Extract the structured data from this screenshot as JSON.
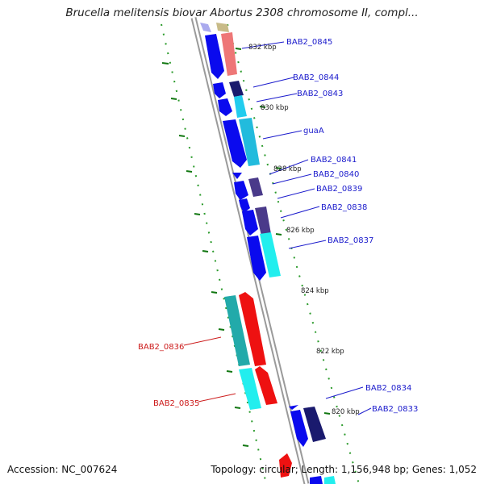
{
  "title": "Brucella melitensis biovar Abortus 2308 chromosome II, compl...",
  "accession": "Accession: NC_007624",
  "summary": "Topology: circular; Length: 1,156,948 bp; Genes: 1,052",
  "kbp_labels": [
    "832 kbp",
    "830 kbp",
    "828 kbp",
    "826 kbp",
    "824 kbp",
    "822 kbp",
    "820 kbp"
  ],
  "genes": [
    {
      "name": "BAB2_0845",
      "color": "#1a1acc"
    },
    {
      "name": "BAB2_0844",
      "color": "#1a1acc"
    },
    {
      "name": "BAB2_0843",
      "color": "#1a1acc"
    },
    {
      "name": "guaA",
      "color": "#1a1acc"
    },
    {
      "name": "BAB2_0841",
      "color": "#1a1acc"
    },
    {
      "name": "BAB2_0840",
      "color": "#1a1acc"
    },
    {
      "name": "BAB2_0839",
      "color": "#1a1acc"
    },
    {
      "name": "BAB2_0838",
      "color": "#1a1acc"
    },
    {
      "name": "BAB2_0837",
      "color": "#1a1acc"
    },
    {
      "name": "BAB2_0836",
      "color": "#cc1a1a"
    },
    {
      "name": "BAB2_0835",
      "color": "#cc1a1a"
    },
    {
      "name": "BAB2_0834",
      "color": "#1a1acc"
    },
    {
      "name": "BAB2_0833",
      "color": "#1a1acc"
    }
  ],
  "colors": {
    "forward_cds": "#0000ee",
    "reverse_cds": "#ff0000",
    "cyan": "#22ccdd",
    "teal": "#22aaaa",
    "navy": "#1a1a6e",
    "slate": "#4a3a8a",
    "salmon": "#ee7777",
    "backbone": "#888888",
    "tick": "#117711"
  }
}
